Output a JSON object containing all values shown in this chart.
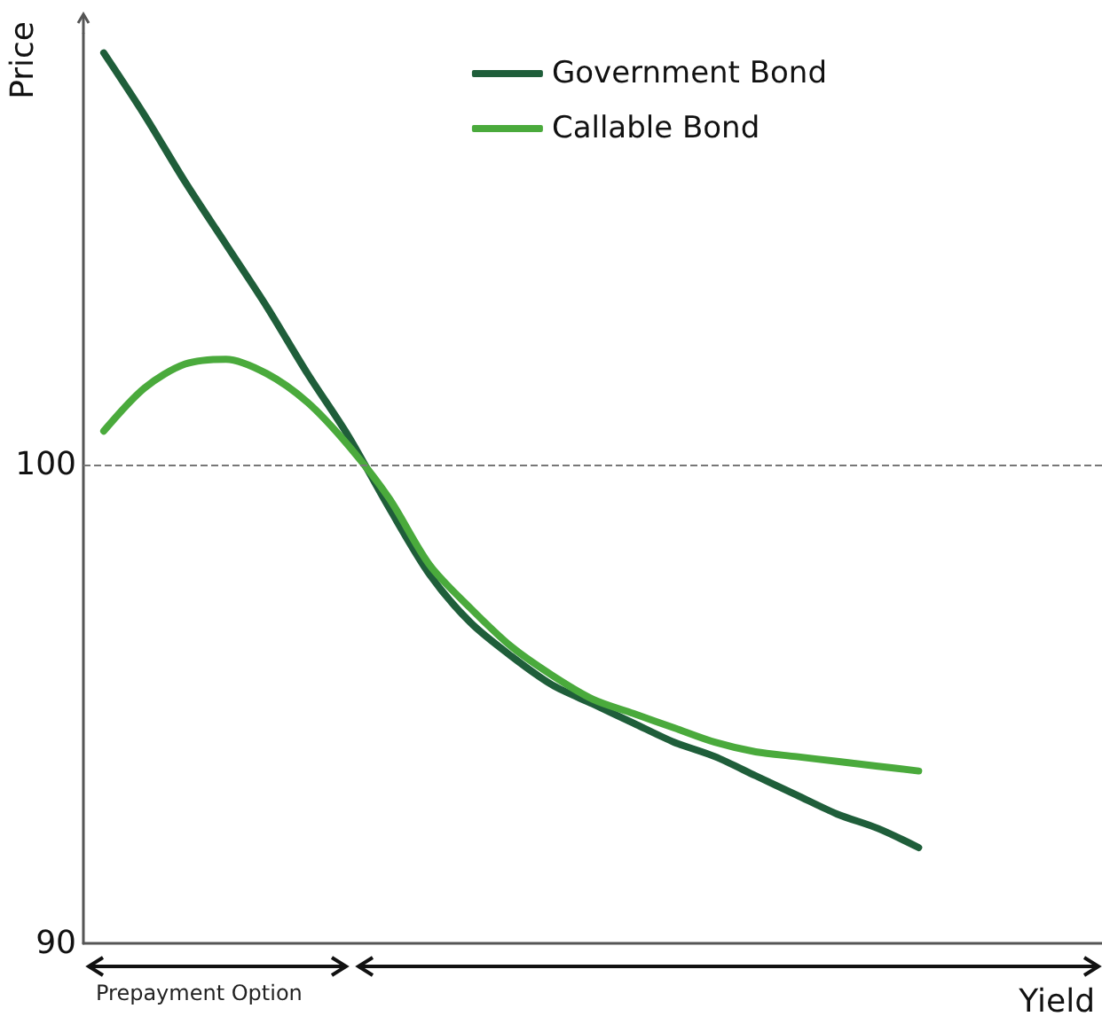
{
  "chart_data": {
    "type": "line",
    "xlabel": "Yield",
    "ylabel": "Price",
    "annotations": [
      "Prepayment Option"
    ],
    "categories": [
      null,
      null,
      null,
      null,
      null,
      null,
      null,
      null,
      null,
      null,
      null,
      null,
      null,
      null,
      null,
      null,
      null,
      null,
      null,
      null,
      null,
      null,
      null,
      null,
      null
    ],
    "series": [
      {
        "name": "Government Bond",
        "color": "#1f5e3a",
        "values": [
          108.6,
          107.3,
          105.9,
          104.6,
          103.3,
          101.9,
          100.6,
          99.1,
          97.7,
          96.7,
          96.0,
          95.4,
          95.0,
          94.6,
          94.2,
          93.9,
          93.5,
          93.1,
          92.7,
          92.4,
          92.0,
          null,
          null,
          null,
          null
        ]
      },
      {
        "name": "Callable Bond",
        "color": "#4aaa3c",
        "values": [
          100.7,
          101.6,
          102.1,
          102.2,
          101.9,
          101.3,
          100.4,
          99.3,
          97.9,
          97.0,
          96.2,
          95.6,
          95.1,
          94.8,
          94.5,
          94.2,
          94.0,
          93.9,
          93.8,
          93.7,
          93.6,
          null,
          null,
          null,
          null
        ]
      }
    ],
    "ylim": [
      90,
      109
    ],
    "yticks": [
      90,
      100
    ],
    "ref_lines": [
      {
        "axis": "y",
        "value": 100,
        "color": "#777777",
        "line_style": "dashed"
      }
    ],
    "tick_labels": "y",
    "grid": false,
    "legend": "top right",
    "marker": "none",
    "line_style": "solid"
  }
}
